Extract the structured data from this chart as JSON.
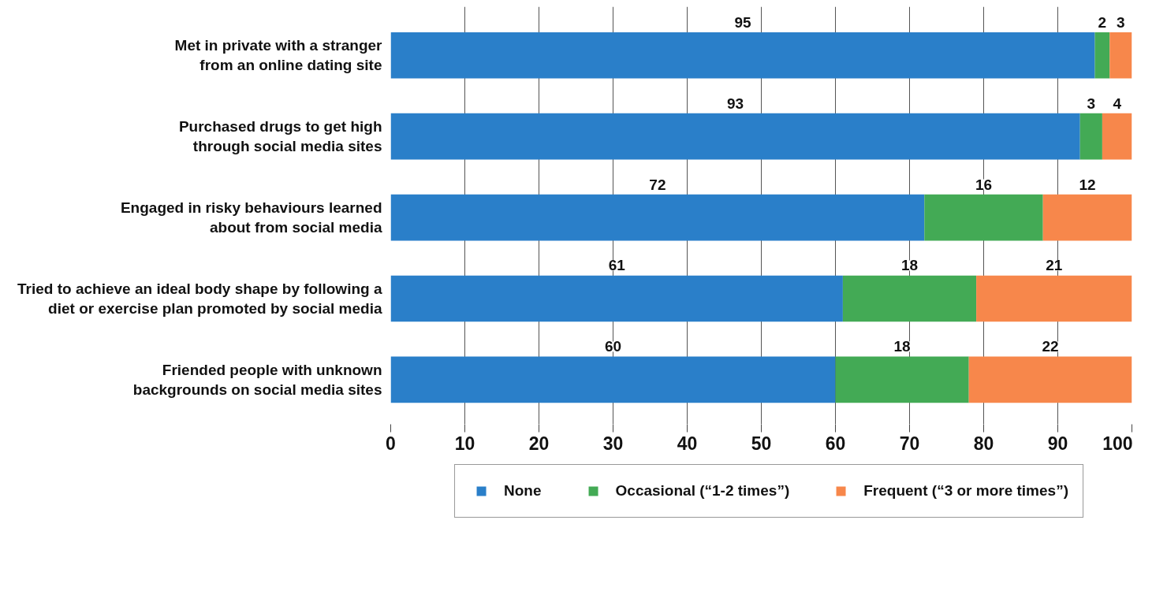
{
  "chart_data": {
    "type": "bar",
    "orientation": "horizontal",
    "stacked": true,
    "categories": [
      "Met in private with a stranger\nfrom an online dating site",
      "Purchased drugs to get high\nthrough social media sites",
      "Engaged in risky behaviours learned\nabout from social media",
      "Tried to achieve an ideal body shape by following a\ndiet or exercise plan promoted by social media",
      "Friended people with unknown\nbackgrounds on social media sites"
    ],
    "series": [
      {
        "name": "None",
        "color": "#2a7fc9",
        "values": [
          95,
          93,
          72,
          61,
          60
        ]
      },
      {
        "name": "Occasional (“1-2 times”)",
        "color": "#43aa55",
        "values": [
          2,
          3,
          16,
          18,
          18
        ]
      },
      {
        "name": "Frequent (“3 or more times”)",
        "color": "#f7874b",
        "values": [
          3,
          4,
          12,
          21,
          22
        ]
      }
    ],
    "xlim": [
      0,
      100
    ],
    "xticks": [
      0,
      10,
      20,
      30,
      40,
      50,
      60,
      70,
      80,
      90,
      100
    ],
    "grid": "x",
    "legend": "bottom",
    "data_labels": true
  }
}
